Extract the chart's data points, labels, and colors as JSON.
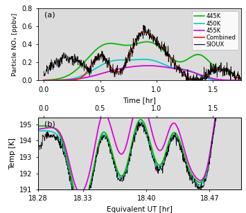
{
  "title_a": "(a)",
  "title_b": "(b)",
  "xlabel_a": "Time [hr]",
  "xlabel_b": "Equivalent UT [hr]",
  "ylabel_a": "Particle NOₓ [ppbv]",
  "ylabel_b": "Temp [K]",
  "color_445": "#00bb00",
  "color_450": "#00cccc",
  "color_455": "#dd00dd",
  "color_combined": "#ee2200",
  "color_sioux": "#000000",
  "label_445": "445K",
  "label_450": "450K",
  "label_455": "455K",
  "label_combined": "Combined",
  "label_sioux": "SIOUX",
  "xlim_time": [
    -0.05,
    1.75
  ],
  "xlim_ut": [
    18.28,
    18.505
  ],
  "ylim_a": [
    0.0,
    0.8
  ],
  "ylim_b": [
    191.0,
    195.4
  ],
  "yticks_a": [
    0.0,
    0.2,
    0.4,
    0.6,
    0.8
  ],
  "yticks_b": [
    191,
    192,
    193,
    194,
    195
  ],
  "xticks_time": [
    0.0,
    0.5,
    1.0,
    1.5
  ],
  "xticks_ut": [
    18.28,
    18.33,
    18.4,
    18.47
  ],
  "bg_color": "#dcdcdc",
  "lw_smooth": 1.3,
  "lw_noisy": 0.55
}
